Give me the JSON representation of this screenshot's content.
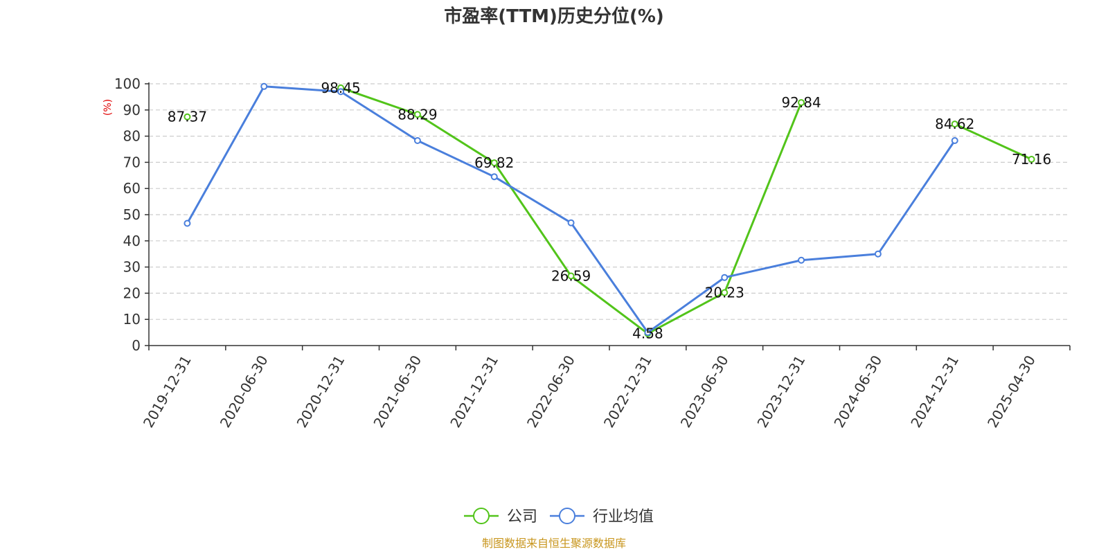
{
  "chart_data": {
    "type": "line",
    "title": "市盈率(TTM)历史分位(%)",
    "ylabel": "(%)",
    "ylim": [
      0,
      100
    ],
    "yticks": [
      0,
      10,
      20,
      30,
      40,
      50,
      60,
      70,
      80,
      90,
      100
    ],
    "grid": true,
    "legend_position": "bottom",
    "categories": [
      "2019-12-31",
      "2020-06-30",
      "2020-12-31",
      "2021-06-30",
      "2021-12-31",
      "2022-06-30",
      "2022-12-31",
      "2023-06-30",
      "2023-12-31",
      "2024-06-30",
      "2024-12-31",
      "2025-04-30"
    ],
    "series": [
      {
        "name": "公司",
        "color": "#52c41a",
        "values": [
          87.37,
          null,
          98.45,
          88.29,
          69.82,
          26.59,
          4.58,
          20.23,
          92.84,
          null,
          84.62,
          71.16
        ],
        "labels": [
          "87.37",
          null,
          "98.45",
          "88.29",
          "69.82",
          "26.59",
          "4.58",
          "20.23",
          "92.84",
          null,
          "84.62",
          "71.16"
        ]
      },
      {
        "name": "行业均值",
        "color": "#4a7fdc",
        "values": [
          46.7,
          99.0,
          97.0,
          78.3,
          64.5,
          46.9,
          5.0,
          26.0,
          32.6,
          35.0,
          78.3,
          null
        ]
      }
    ],
    "source": "制图数据来自恒生聚源数据库",
    "source_color": "#c8961e"
  }
}
